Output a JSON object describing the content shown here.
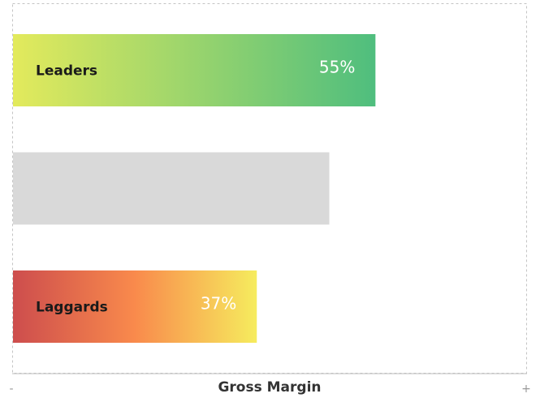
{
  "chart_data": {
    "type": "bar",
    "orientation": "horizontal",
    "xlabel": "Gross Margin",
    "axis_min_label": "-",
    "axis_max_label": "+",
    "xlim": [
      0,
      78
    ],
    "grid": false,
    "bars": [
      {
        "category": "Leaders",
        "value": 55,
        "value_label": "55%",
        "gradient": [
          "#e3ea5c",
          "#4fbe7e"
        ]
      },
      {
        "category": "",
        "value": 48,
        "value_label": "",
        "gradient": [
          "#d9d9d9",
          "#d9d9d9"
        ]
      },
      {
        "category": "Laggards",
        "value": 37,
        "value_label": "37%",
        "gradient": [
          "#cd4d4d",
          "#f98a4c",
          "#f6ec5e"
        ]
      }
    ]
  }
}
